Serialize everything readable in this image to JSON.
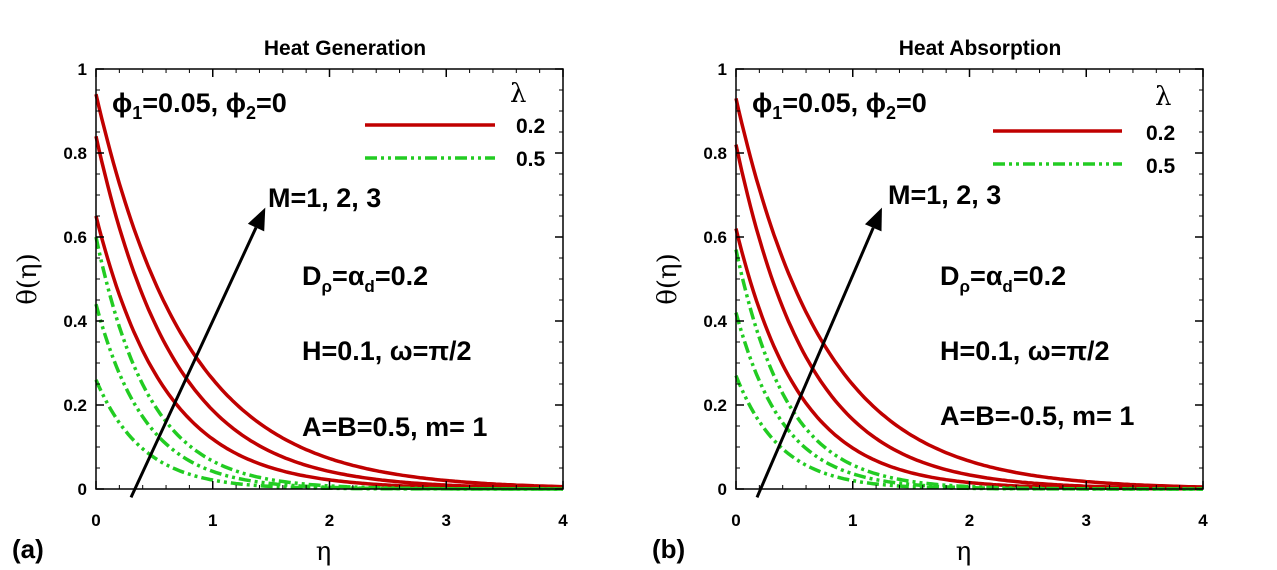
{
  "chart_data": [
    {
      "type": "line",
      "panel_label": "(a)",
      "title": "Heat Generation",
      "xlabel": "η",
      "ylabel": "θ(η)",
      "xlim": [
        0,
        4
      ],
      "ylim": [
        0,
        1
      ],
      "xticks": [
        "0",
        "1",
        "2",
        "3",
        "4"
      ],
      "yticks": [
        "0",
        "0.2",
        "0.4",
        "0.6",
        "0.8",
        "1"
      ],
      "legend_title": "λ",
      "legend": [
        {
          "label": "0.2",
          "style": "solid",
          "color": "#c00000"
        },
        {
          "label": "0.5",
          "style": "dashdotdot",
          "color": "#22cc22"
        }
      ],
      "annotations": {
        "phi": "ϕ1=0.05, ϕ2=0",
        "arrow": "M=1, 2, 3",
        "d": "Dρ=αd=0.2",
        "h": "H=0.1, ω=π/2",
        "ab": "A=B=0.5, m= 1"
      },
      "series": [
        {
          "name": "λ=0.2, M=1",
          "lambda": "0.2",
          "style": "solid",
          "y0": 0.65,
          "k": 1.7
        },
        {
          "name": "λ=0.2, M=2",
          "lambda": "0.2",
          "style": "solid",
          "y0": 0.84,
          "k": 1.5
        },
        {
          "name": "λ=0.2, M=3",
          "lambda": "0.2",
          "style": "solid",
          "y0": 0.94,
          "k": 1.28
        },
        {
          "name": "λ=0.5, M=1",
          "lambda": "0.5",
          "style": "dashdotdot",
          "y0": 0.26,
          "k": 2.5
        },
        {
          "name": "λ=0.5, M=2",
          "lambda": "0.5",
          "style": "dashdotdot",
          "y0": 0.44,
          "k": 2.35
        },
        {
          "name": "λ=0.5, M=3",
          "lambda": "0.5",
          "style": "dashdotdot",
          "y0": 0.6,
          "k": 2.2
        }
      ]
    },
    {
      "type": "line",
      "panel_label": "(b)",
      "title": "Heat Absorption",
      "xlabel": "η",
      "ylabel": "θ(η)",
      "xlim": [
        0,
        4
      ],
      "ylim": [
        0,
        1
      ],
      "xticks": [
        "0",
        "1",
        "2",
        "3",
        "4"
      ],
      "yticks": [
        "0",
        "0.2",
        "0.4",
        "0.6",
        "0.8",
        "1"
      ],
      "legend_title": "λ",
      "legend": [
        {
          "label": "0.2",
          "style": "solid",
          "color": "#c00000"
        },
        {
          "label": "0.5",
          "style": "dashdotdot",
          "color": "#22cc22"
        }
      ],
      "annotations": {
        "phi": "ϕ1=0.05, ϕ2=0",
        "arrow": "M=1, 2, 3",
        "d": "Dρ=αd=0.2",
        "h": "H=0.1, ω=π/2",
        "ab": "A=B=-0.5, m= 1"
      },
      "series": [
        {
          "name": "λ=0.2, M=1",
          "lambda": "0.2",
          "style": "solid",
          "y0": 0.62,
          "k": 1.85
        },
        {
          "name": "λ=0.2, M=2",
          "lambda": "0.2",
          "style": "solid",
          "y0": 0.82,
          "k": 1.6
        },
        {
          "name": "λ=0.2, M=3",
          "lambda": "0.2",
          "style": "solid",
          "y0": 0.93,
          "k": 1.32
        },
        {
          "name": "λ=0.5, M=1",
          "lambda": "0.5",
          "style": "dashdotdot",
          "y0": 0.27,
          "k": 2.6
        },
        {
          "name": "λ=0.5, M=2",
          "lambda": "0.5",
          "style": "dashdotdot",
          "y0": 0.42,
          "k": 2.45
        },
        {
          "name": "λ=0.5, M=3",
          "lambda": "0.5",
          "style": "dashdotdot",
          "y0": 0.57,
          "k": 2.3
        }
      ]
    }
  ]
}
